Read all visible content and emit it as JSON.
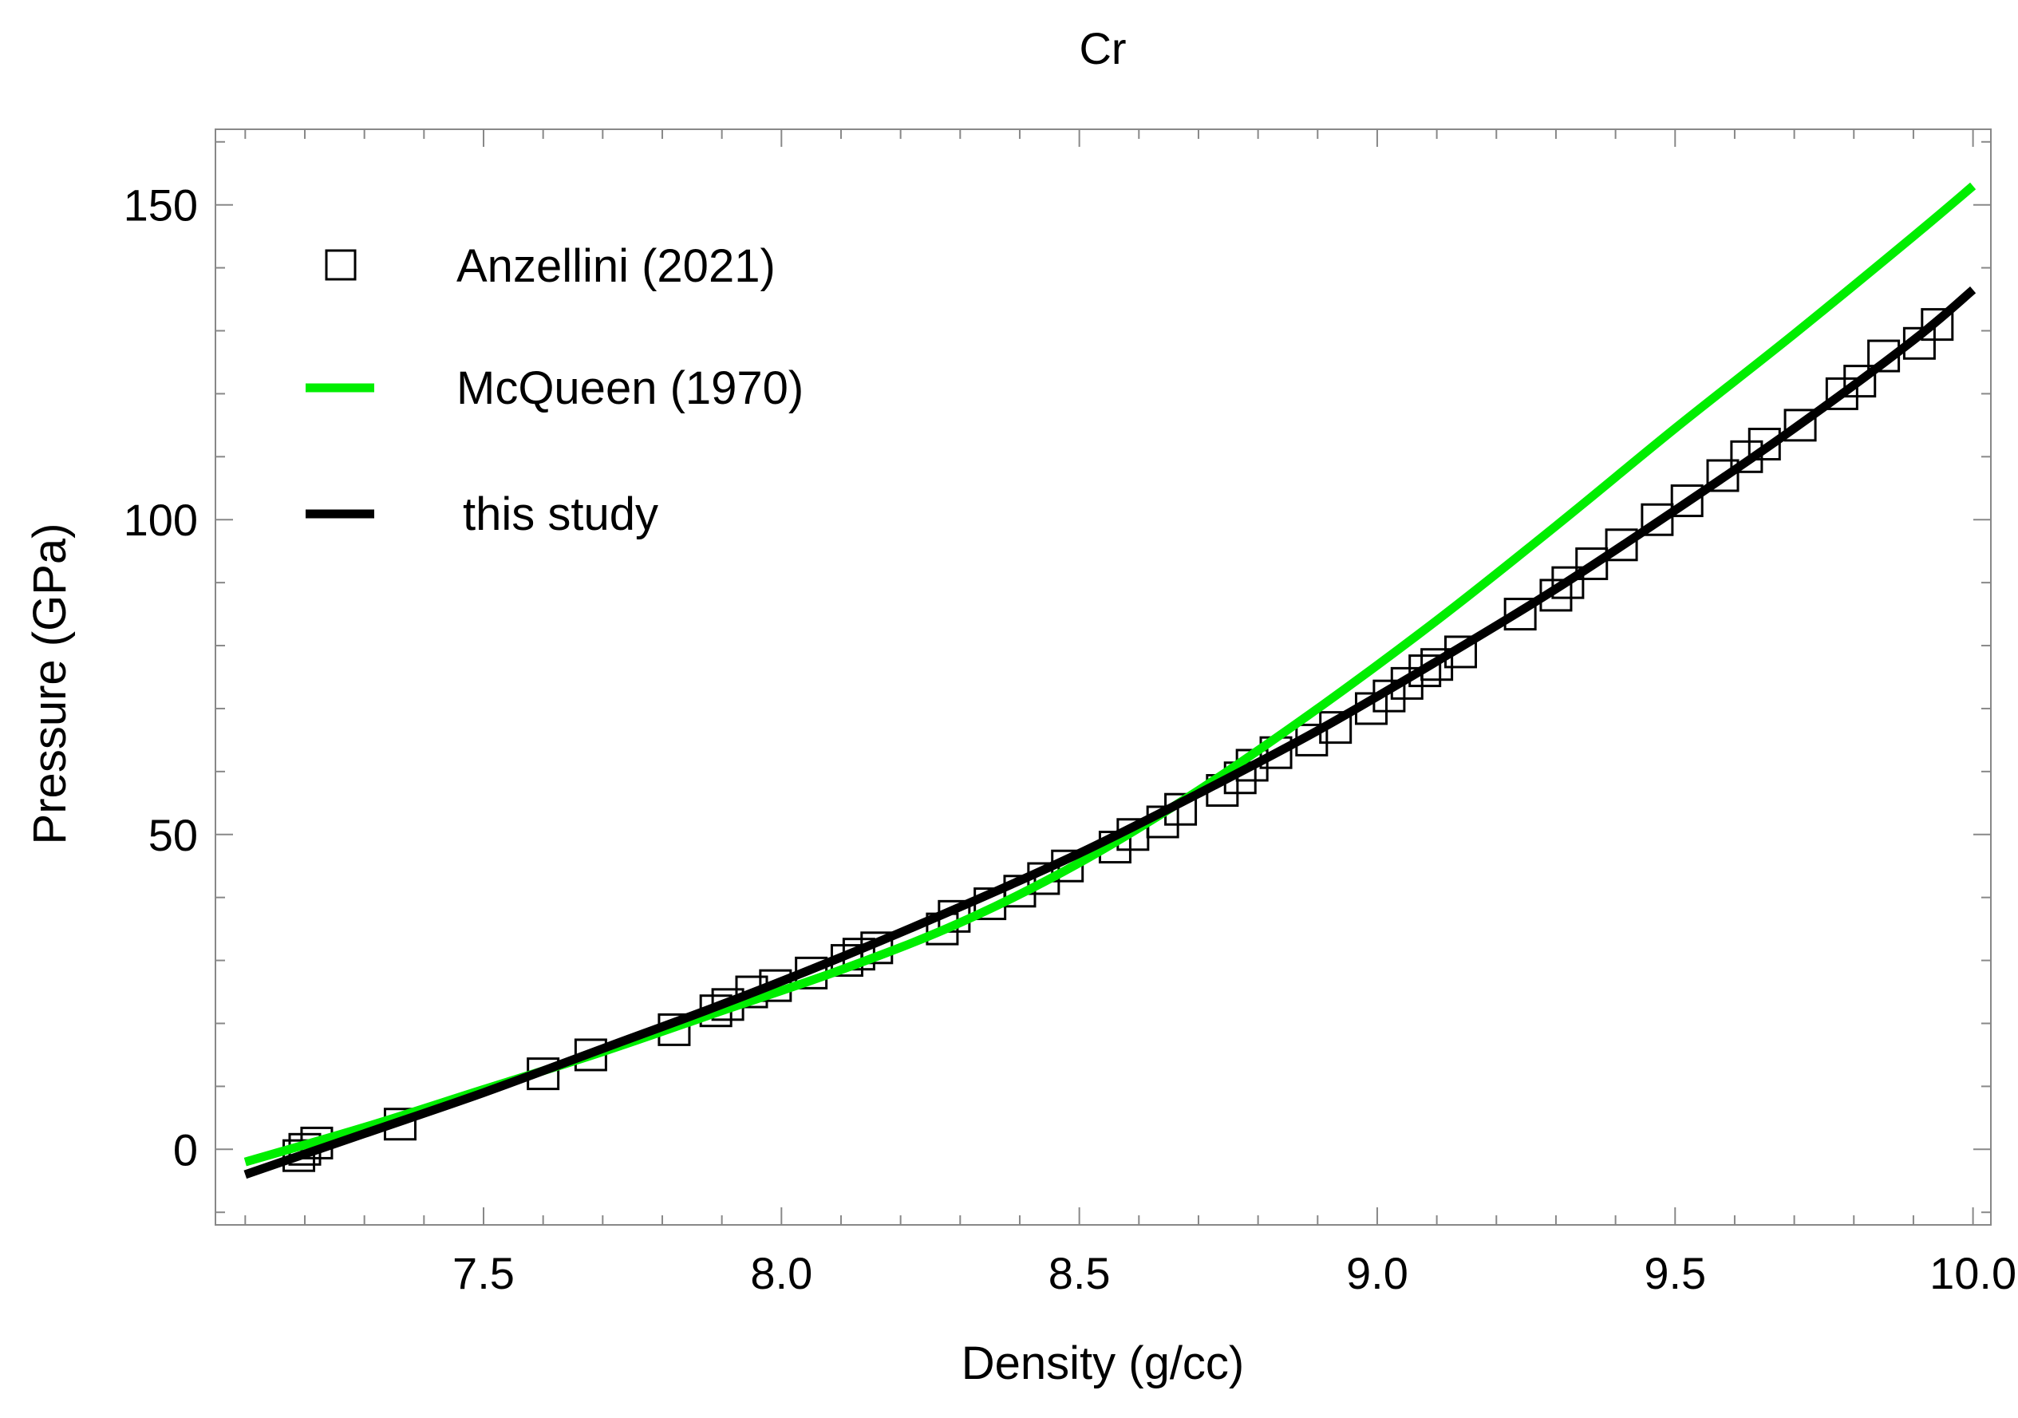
{
  "chart_data": {
    "type": "scatter",
    "title": "Cr",
    "xlabel": "Density (g/cc)",
    "ylabel": "Pressure (GPa)",
    "xlim": [
      7.05,
      10.03
    ],
    "ylim": [
      -12,
      162
    ],
    "x_ticks": [
      7.5,
      8.0,
      8.5,
      9.0,
      9.5,
      10.0
    ],
    "x_tick_labels": [
      "7.5",
      "8.0",
      "8.5",
      "9.0",
      "9.5",
      "10.0"
    ],
    "y_ticks": [
      0,
      50,
      100,
      150
    ],
    "y_tick_labels": [
      "0",
      "50",
      "100",
      "150"
    ],
    "grid": false,
    "legend_position": "top-left",
    "series": [
      {
        "name": "Anzellini (2021)",
        "kind": "markers",
        "marker": "open-square",
        "color": "#000000",
        "x": [
          7.19,
          7.2,
          7.22,
          7.36,
          7.6,
          7.68,
          7.82,
          7.89,
          7.91,
          7.95,
          7.99,
          8.05,
          8.11,
          8.13,
          8.16,
          8.27,
          8.29,
          8.35,
          8.4,
          8.44,
          8.48,
          8.56,
          8.59,
          8.64,
          8.67,
          8.74,
          8.77,
          8.79,
          8.83,
          8.89,
          8.93,
          8.99,
          9.02,
          9.05,
          9.08,
          9.1,
          9.14,
          9.24,
          9.3,
          9.32,
          9.36,
          9.41,
          9.47,
          9.52,
          9.58,
          9.62,
          9.65,
          9.71,
          9.78,
          9.81,
          9.85,
          9.91,
          9.94
        ],
        "y": [
          -1,
          0,
          1,
          4,
          12,
          15,
          19,
          22,
          23,
          25,
          26,
          28,
          30,
          31,
          32,
          35,
          37,
          39,
          41,
          43,
          45,
          48,
          50,
          52,
          54,
          57,
          59,
          61,
          63,
          65,
          67,
          70,
          72,
          74,
          76,
          77,
          79,
          85,
          88,
          90,
          93,
          96,
          100,
          103,
          107,
          110,
          112,
          115,
          120,
          122,
          126,
          128,
          131
        ]
      },
      {
        "name": "McQueen (1970)",
        "kind": "line",
        "color": "#00ee00",
        "x": [
          7.1,
          7.3,
          7.5,
          7.7,
          7.9,
          8.1,
          8.3,
          8.5,
          8.7,
          8.9,
          9.1,
          9.3,
          9.5,
          9.7,
          9.9,
          10.0
        ],
        "y": [
          -2.0,
          3.5,
          9.5,
          15.5,
          22.0,
          28.5,
          36.0,
          45.5,
          57.0,
          70.0,
          84.0,
          99.0,
          114.5,
          129.5,
          145.0,
          153.0
        ]
      },
      {
        "name": "this study",
        "kind": "line",
        "color": "#000000",
        "x": [
          7.1,
          7.3,
          7.5,
          7.7,
          7.9,
          8.1,
          8.3,
          8.5,
          8.7,
          8.9,
          9.1,
          9.3,
          9.5,
          9.7,
          9.9,
          10.0
        ],
        "y": [
          -4.0,
          2.5,
          9.0,
          16.0,
          23.0,
          30.5,
          38.5,
          47.0,
          56.5,
          66.5,
          77.5,
          89.0,
          101.5,
          114.5,
          128.5,
          136.5
        ]
      }
    ]
  }
}
